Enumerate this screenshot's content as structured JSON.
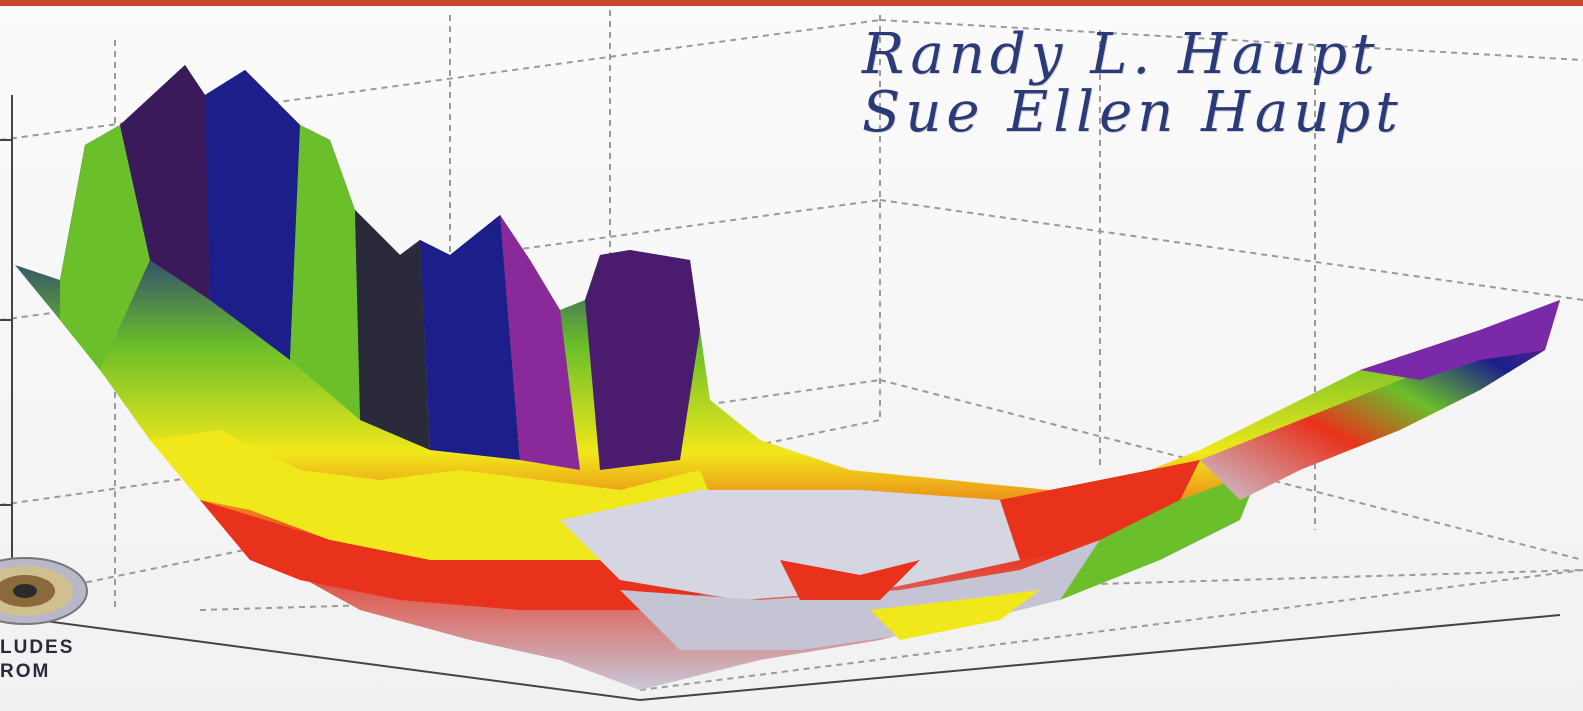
{
  "cover": {
    "authors": [
      "Randy L. Haupt",
      "Sue Ellen Haupt"
    ],
    "cd_badge": {
      "line1": "LUDES",
      "line2": "ROM"
    },
    "colors": {
      "top_band": "#c8442a",
      "author_text": "#2b3a78",
      "surface": [
        "#4b1c6e",
        "#1c1f8a",
        "#2a2a3a",
        "#6bbf2a",
        "#f0e81a",
        "#e8321c",
        "#c8c8d8",
        "#8a2a9a"
      ]
    },
    "icons": [
      "cd-rom-icon"
    ]
  }
}
